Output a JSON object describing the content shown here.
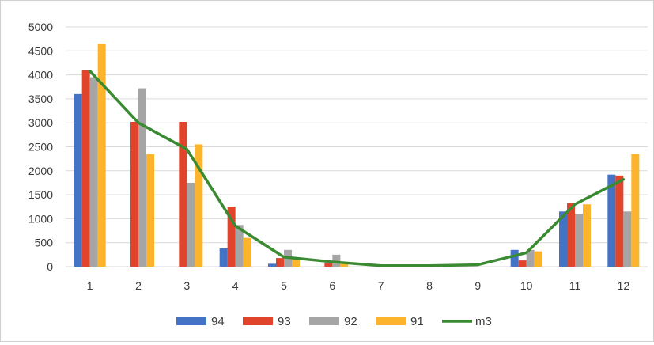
{
  "chart_data": {
    "type": "bar",
    "categories": [
      "1",
      "2",
      "3",
      "4",
      "5",
      "6",
      "7",
      "8",
      "9",
      "10",
      "11",
      "12"
    ],
    "ylim": [
      0,
      5000
    ],
    "yticks": [
      0,
      500,
      1000,
      1500,
      2000,
      2500,
      3000,
      3500,
      4000,
      4500,
      5000
    ],
    "grid": true,
    "legend": "bottom",
    "series": [
      {
        "name": "94",
        "color": "#4472c4",
        "values": [
          3600,
          0,
          0,
          380,
          60,
          0,
          0,
          0,
          0,
          350,
          1150,
          1920
        ]
      },
      {
        "name": "93",
        "color": "#e0452b",
        "values": [
          4100,
          3020,
          3020,
          1250,
          180,
          70,
          0,
          0,
          0,
          130,
          1330,
          1900
        ]
      },
      {
        "name": "92",
        "color": "#a5a5a5",
        "values": [
          3950,
          3720,
          1750,
          870,
          350,
          250,
          0,
          0,
          0,
          350,
          1100,
          1150
        ]
      },
      {
        "name": "91",
        "color": "#fcb42c",
        "values": [
          4650,
          2350,
          2550,
          600,
          180,
          80,
          0,
          0,
          0,
          320,
          1300,
          2350
        ]
      }
    ],
    "line_series": {
      "name": "m3",
      "color": "#3a8a32",
      "values": [
        4080,
        3000,
        2450,
        850,
        200,
        100,
        20,
        20,
        40,
        290,
        1300,
        1820
      ]
    }
  }
}
